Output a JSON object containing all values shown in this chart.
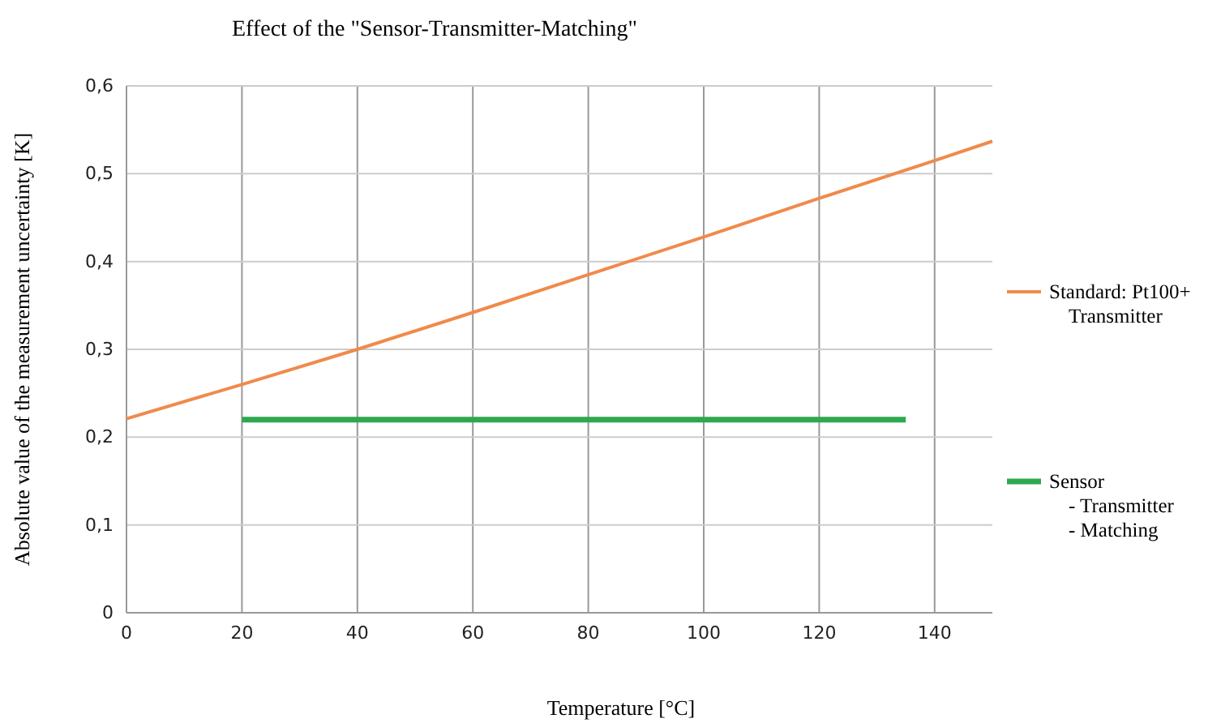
{
  "chart_data": {
    "type": "line",
    "title": "Effect of the  \"Sensor-Transmitter-Matching\"",
    "xlabel": "Temperature [°C]",
    "ylabel": "Absolute value of the  measurement uncertainty [K]",
    "series": [
      {
        "name": "Standard: Pt100+ Transmitter",
        "color": "#f08a4b",
        "x": [
          0,
          20,
          40,
          60,
          80,
          100,
          120,
          140,
          150
        ],
        "values": [
          0.221,
          0.26,
          0.3,
          0.342,
          0.385,
          0.428,
          0.472,
          0.515,
          0.537
        ]
      },
      {
        "name": "Sensor - Transmitter - Matching",
        "color": "#2ea84f",
        "x": [
          20,
          135
        ],
        "values": [
          0.22,
          0.22
        ]
      }
    ],
    "xlim": [
      0,
      150
    ],
    "xticks": [
      0,
      20,
      40,
      60,
      80,
      100,
      120,
      140
    ],
    "ylim": [
      0,
      0.6
    ],
    "yticks": [
      {
        "value": 0,
        "label": "0"
      },
      {
        "value": 0.1,
        "label": "0,1"
      },
      {
        "value": 0.2,
        "label": "0,2"
      },
      {
        "value": 0.3,
        "label": "0,3"
      },
      {
        "value": 0.4,
        "label": "0,4"
      },
      {
        "value": 0.5,
        "label": "0,5"
      },
      {
        "value": 0.6,
        "label": "0,6"
      }
    ],
    "grid": true,
    "legend": "right",
    "marker": "none",
    "line_style": "solid"
  }
}
